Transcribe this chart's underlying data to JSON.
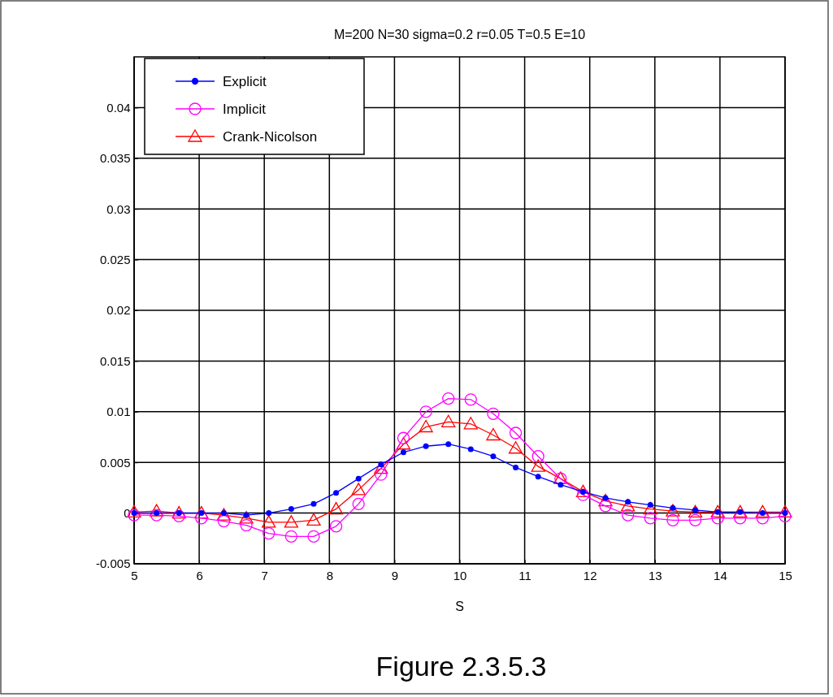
{
  "chart_data": {
    "type": "line",
    "title": "M=200 N=30 sigma=0.2 r=0.05 T=0.5 E=10",
    "xlabel": "S",
    "x": [
      5,
      5.345,
      5.69,
      6.034,
      6.379,
      6.724,
      7.069,
      7.414,
      7.759,
      8.103,
      8.448,
      8.793,
      9.138,
      9.483,
      9.828,
      10.172,
      10.517,
      10.862,
      11.207,
      11.552,
      11.897,
      12.241,
      12.586,
      12.931,
      13.276,
      13.621,
      13.966,
      14.31,
      14.655,
      15
    ],
    "series": [
      {
        "name": "Explicit",
        "color": "#0000ff",
        "marker": "circle",
        "values": [
          0,
          0,
          0,
          0,
          0,
          -0.0002,
          0,
          0.0004,
          0.0009,
          0.002,
          0.0034,
          0.0048,
          0.006,
          0.0066,
          0.0068,
          0.0063,
          0.0056,
          0.0045,
          0.0036,
          0.0028,
          0.0021,
          0.0015,
          0.0011,
          0.0008,
          0.0005,
          0.0003,
          0.0001,
          0.0001,
          0,
          0
        ]
      },
      {
        "name": "Implicit",
        "color": "#ff00ff",
        "marker": "circle-open",
        "values": [
          -0.0002,
          -0.0002,
          -0.0003,
          -0.0005,
          -0.0008,
          -0.0012,
          -0.002,
          -0.0023,
          -0.0023,
          -0.0013,
          0.0009,
          0.0038,
          0.0074,
          0.01,
          0.0113,
          0.0112,
          0.0098,
          0.0079,
          0.0056,
          0.0034,
          0.0018,
          0.0007,
          -0.0002,
          -0.0005,
          -0.0007,
          -0.0007,
          -0.0005,
          -0.0005,
          -0.0005,
          -0.0003
        ]
      },
      {
        "name": "Crank-Nicolson",
        "color": "#ff0000",
        "marker": "triangle",
        "values": [
          0.0001,
          0.0002,
          0,
          0,
          -0.0002,
          -0.0005,
          -0.0009,
          -0.0009,
          -0.0007,
          0.0004,
          0.0023,
          0.0044,
          0.0068,
          0.0085,
          0.009,
          0.0088,
          0.0077,
          0.0064,
          0.0046,
          0.0034,
          0.0021,
          0.0012,
          0.0007,
          0.0004,
          0.0002,
          0.0001,
          0.0001,
          0.0001,
          0.0001,
          0.0001
        ]
      }
    ],
    "xlim": [
      5,
      15
    ],
    "xticks": [
      5,
      6,
      7,
      8,
      9,
      10,
      11,
      12,
      13,
      14,
      15
    ],
    "ylim": [
      -0.005,
      0.045
    ],
    "yticks": [
      -0.005,
      0,
      0.005,
      0.01,
      0.015,
      0.02,
      0.025,
      0.03,
      0.035,
      0.04
    ],
    "grid": true,
    "legend": "top left",
    "line_style": "solid",
    "annotations": [
      "Figure 2.3.5.3"
    ]
  }
}
